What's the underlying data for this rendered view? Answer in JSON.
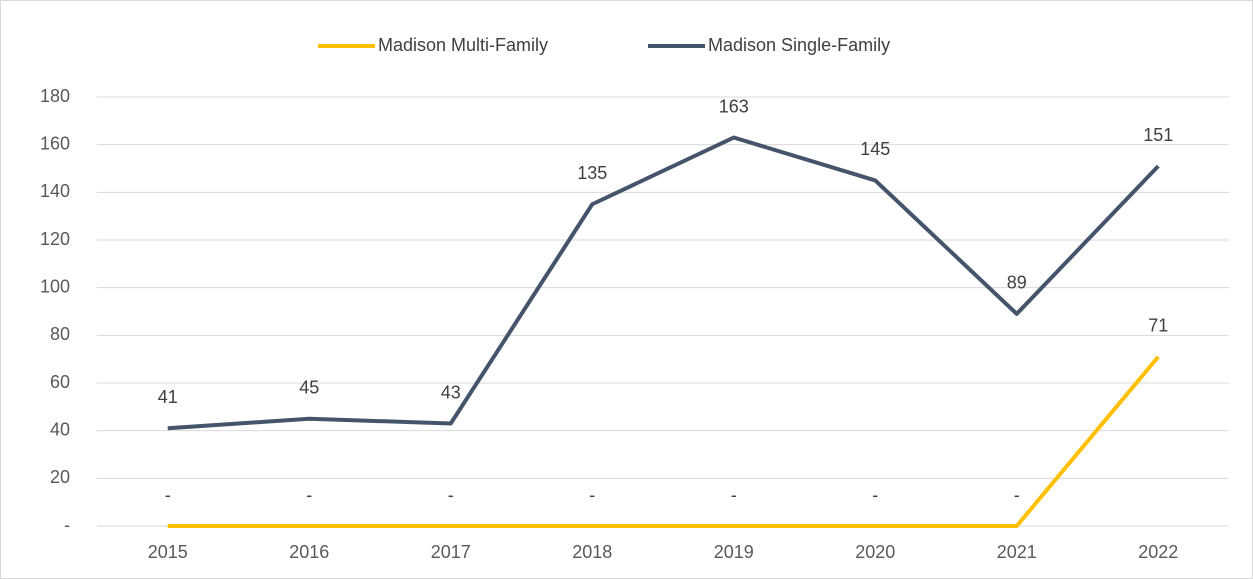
{
  "chart_data": {
    "type": "line",
    "categories": [
      "2015",
      "2016",
      "2017",
      "2018",
      "2019",
      "2020",
      "2021",
      "2022"
    ],
    "series": [
      {
        "name": "Madison Multi-Family",
        "color": "#ffc000",
        "values": [
          0,
          0,
          0,
          0,
          0,
          0,
          0,
          71
        ],
        "value_labels": [
          "-",
          "-",
          "-",
          "-",
          "-",
          "-",
          "-",
          "71"
        ]
      },
      {
        "name": "Madison Single-Family",
        "color": "#44546a",
        "values": [
          41,
          45,
          43,
          135,
          163,
          145,
          89,
          151
        ]
      }
    ],
    "ylim": [
      0,
      180
    ],
    "yticks": [
      {
        "value": 0,
        "label": "-"
      },
      20,
      40,
      60,
      80,
      100,
      120,
      140,
      160,
      180
    ],
    "grid": true,
    "legend": "top"
  }
}
